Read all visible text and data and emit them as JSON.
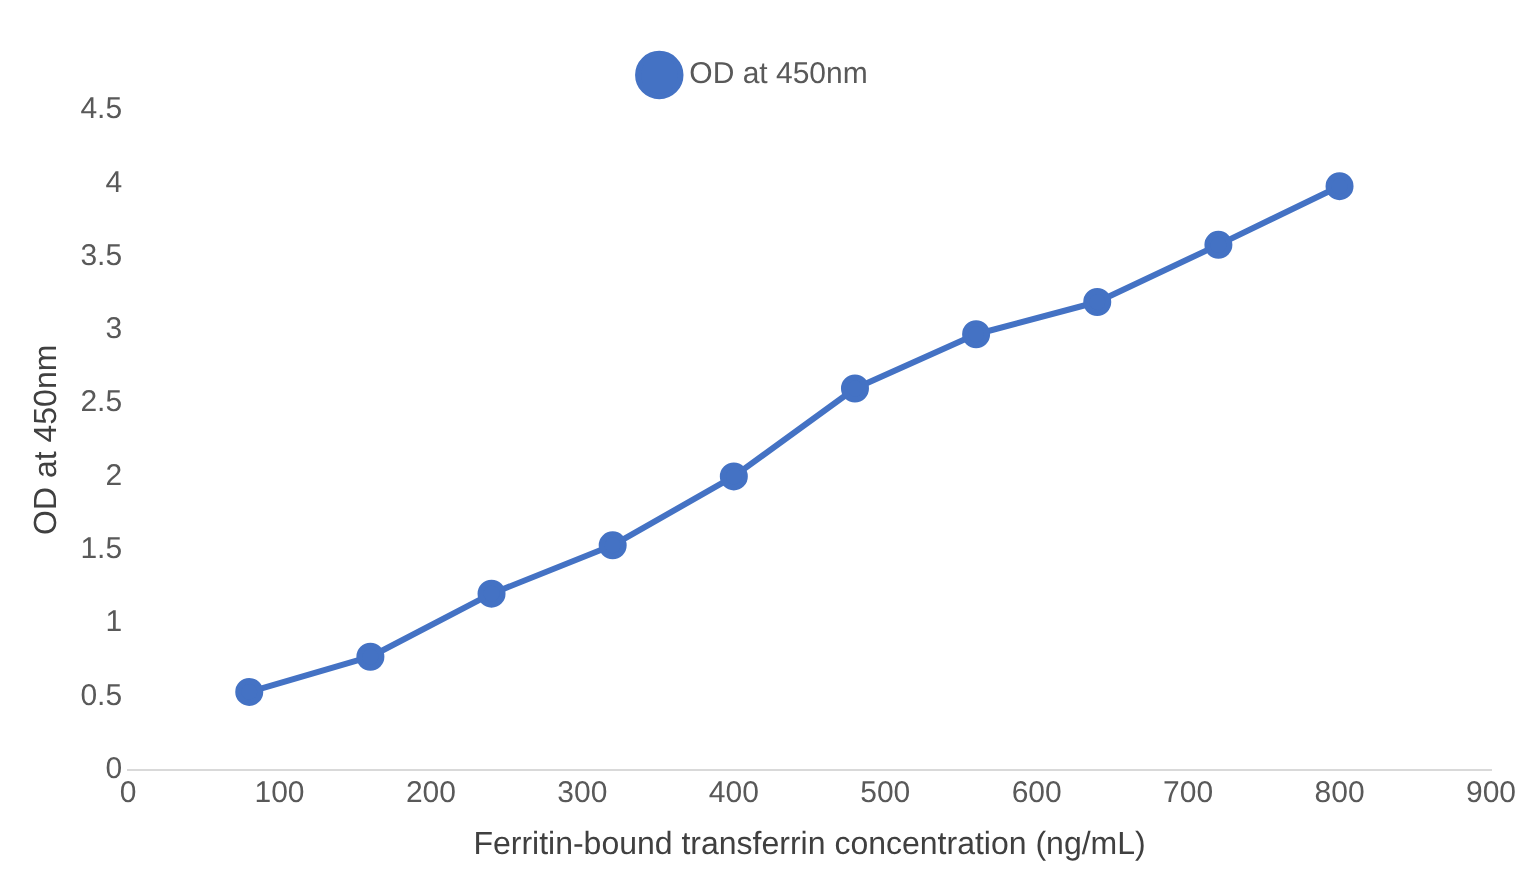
{
  "chart_data": {
    "type": "line",
    "xlabel": "Ferritin-bound transferrin concentration (ng/mL)",
    "ylabel": "OD at 450nm",
    "x": [
      80,
      160,
      240,
      320,
      400,
      480,
      560,
      640,
      720,
      800
    ],
    "series": [
      {
        "name": "OD at 450nm",
        "color": "#4472c4",
        "values": [
          0.53,
          0.77,
          1.2,
          1.53,
          2.0,
          2.6,
          2.97,
          3.19,
          3.58,
          3.98
        ]
      }
    ],
    "xlim": [
      0,
      900
    ],
    "xticks": [
      0,
      100,
      200,
      300,
      400,
      500,
      600,
      700,
      800,
      900
    ],
    "ylim": [
      0,
      4.5
    ],
    "yticks": [
      0,
      0.5,
      1,
      1.5,
      2,
      2.5,
      3,
      3.5,
      4,
      4.5
    ],
    "grid": false,
    "legend": "top",
    "marker": "circle",
    "line_style": "solid"
  }
}
